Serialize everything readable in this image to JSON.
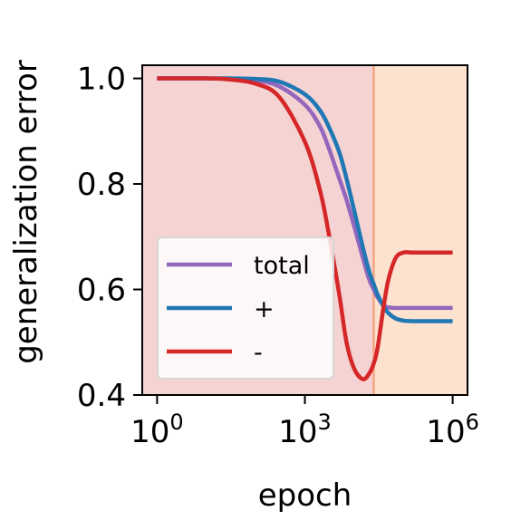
{
  "chart_data": {
    "type": "line",
    "title": "",
    "xlabel": "epoch",
    "ylabel": "generalization error",
    "xscale": "log",
    "xlim": [
      0.5,
      2000000
    ],
    "ylim": [
      0.4,
      1.025
    ],
    "xticks": [
      {
        "value": 1,
        "base": "10",
        "exp": "0"
      },
      {
        "value": 1000,
        "base": "10",
        "exp": "3"
      },
      {
        "value": 1000000,
        "base": "10",
        "exp": "6"
      }
    ],
    "yticks": [
      {
        "value": 0.4,
        "label": "0.4"
      },
      {
        "value": 0.6,
        "label": "0.6"
      },
      {
        "value": 0.8,
        "label": "0.8"
      },
      {
        "value": 1.0,
        "label": "1.0"
      }
    ],
    "grid": false,
    "legend_position": "lower-left",
    "regions": [
      {
        "x_start": 0.5,
        "x_end": 25000,
        "color": "#f5d3d3"
      },
      {
        "x_start": 25000,
        "x_end": 2000000,
        "color": "#fde3cf"
      }
    ],
    "vline": {
      "x": 25000,
      "color": "#f4a582"
    },
    "x": [
      1,
      3,
      10,
      30,
      100,
      300,
      1000,
      2000,
      3000,
      5000,
      7000,
      10000,
      15000,
      20000,
      25000,
      30000,
      40000,
      50000,
      70000,
      100000,
      150000,
      300000,
      1000000
    ],
    "series": [
      {
        "name": "total",
        "color": "#9467bd",
        "values": [
          1.0,
          1.0,
          1.0,
          0.999,
          0.996,
          0.985,
          0.95,
          0.91,
          0.87,
          0.81,
          0.77,
          0.72,
          0.66,
          0.62,
          0.6,
          0.585,
          0.57,
          0.566,
          0.565,
          0.565,
          0.565,
          0.565,
          0.565
        ]
      },
      {
        "name": "+",
        "color": "#1f77b4",
        "values": [
          1.0,
          1.0,
          1.0,
          1.0,
          0.999,
          0.994,
          0.97,
          0.94,
          0.91,
          0.86,
          0.81,
          0.75,
          0.68,
          0.635,
          0.61,
          0.59,
          0.567,
          0.555,
          0.545,
          0.541,
          0.54,
          0.54,
          0.54
        ]
      },
      {
        "name": "-",
        "color": "#d62728",
        "values": [
          1.0,
          1.0,
          1.0,
          0.998,
          0.99,
          0.965,
          0.88,
          0.79,
          0.71,
          0.59,
          0.5,
          0.45,
          0.43,
          0.44,
          0.46,
          0.49,
          0.57,
          0.62,
          0.66,
          0.67,
          0.67,
          0.67,
          0.67
        ]
      }
    ]
  }
}
